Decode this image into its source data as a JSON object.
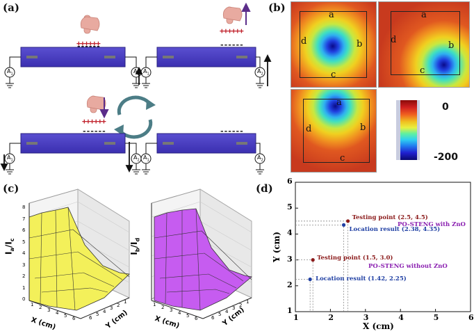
{
  "panels": {
    "a": "(a)",
    "b": "(b)",
    "c": "(c)",
    "d": "(d)"
  },
  "panel_a": {
    "charges_pos": "++++++",
    "charges_neg": "------",
    "ammeter": "A",
    "ammeter_sub": "1",
    "ammeter_sub2": "2"
  },
  "panel_b": {
    "sides": {
      "a": "a",
      "b": "b",
      "c": "c",
      "d": "d"
    },
    "colorbar_max": "0",
    "colorbar_min": "-200"
  },
  "panel_c": {
    "left": {
      "zlabel": "I",
      "zsub": "a",
      "zsep": "/I",
      "zsub2": "c"
    },
    "right": {
      "zlabel": "I",
      "zsub": "b",
      "zsep": "/I",
      "zsub2": "d"
    },
    "xlabel": "X (cm)",
    "ylabel": "Y (cm)",
    "z_ticks": [
      "0",
      "1",
      "2",
      "3",
      "4",
      "5",
      "6",
      "7",
      "8"
    ],
    "x_ticks": [
      "1",
      "2",
      "3",
      "4",
      "5",
      "6"
    ],
    "y_ticks": [
      "1",
      "2",
      "3",
      "4",
      "5",
      "6"
    ]
  },
  "chart_data": {
    "type": "scatter",
    "xlabel": "X (cm)",
    "ylabel": "Y (cm)",
    "xlim": [
      1,
      6
    ],
    "ylim": [
      1,
      6
    ],
    "x_ticks": [
      "1",
      "2",
      "3",
      "4",
      "5",
      "6"
    ],
    "y_ticks": [
      "1",
      "2",
      "3",
      "4",
      "5",
      "6"
    ],
    "points": [
      {
        "label": "Testing point (2.5, 4.5)",
        "x": 2.5,
        "y": 4.5,
        "color": "#8b1a1a"
      },
      {
        "label": "Location result (2.38, 4.35)",
        "x": 2.38,
        "y": 4.35,
        "color": "#1f3fa3"
      },
      {
        "label": "Testing point (1.5, 3.0)",
        "x": 1.5,
        "y": 3.0,
        "color": "#8b1a1a"
      },
      {
        "label": "Location result (1.42, 2.25)",
        "x": 1.42,
        "y": 2.25,
        "color": "#1f3fa3"
      }
    ],
    "annotations": [
      "PO-STENG with ZnO",
      "PO-STENG without ZnO"
    ]
  }
}
